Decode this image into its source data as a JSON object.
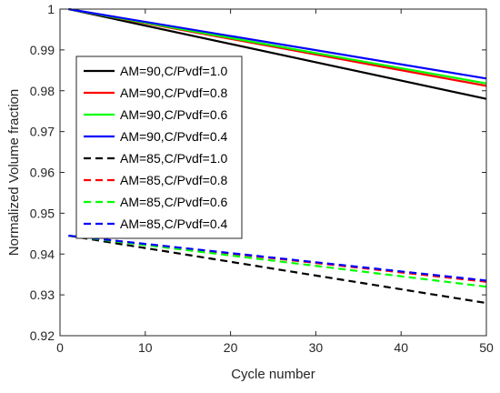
{
  "chart_data": {
    "type": "line",
    "title": "",
    "xlabel": "Cycle number",
    "ylabel": "Normalized Volume fraction",
    "xlim": [
      0,
      50
    ],
    "ylim": [
      0.92,
      1.0
    ],
    "xticks": [
      0,
      10,
      20,
      30,
      40,
      50
    ],
    "xtick_labels": [
      "0",
      "10",
      "20",
      "30",
      "40",
      "50"
    ],
    "yticks": [
      0.92,
      0.93,
      0.94,
      0.95,
      0.96,
      0.97,
      0.98,
      0.99,
      1.0
    ],
    "ytick_labels": [
      "0.92",
      "0.93",
      "0.94",
      "0.95",
      "0.96",
      "0.97",
      "0.98",
      "0.99",
      "1"
    ],
    "grid": false,
    "legend_position": "top-left",
    "series": [
      {
        "name": "AM=90,C/Pvdf=1.0",
        "color": "#000000",
        "style": "solid",
        "x": [
          1,
          50
        ],
        "y": [
          1.0,
          0.978
        ]
      },
      {
        "name": "AM=90,C/Pvdf=0.8",
        "color": "#ff0000",
        "style": "solid",
        "x": [
          1,
          50
        ],
        "y": [
          1.0,
          0.9812
        ]
      },
      {
        "name": "AM=90,C/Pvdf=0.6",
        "color": "#00ff00",
        "style": "solid",
        "x": [
          1,
          50
        ],
        "y": [
          1.0,
          0.9818
        ]
      },
      {
        "name": "AM=90,C/Pvdf=0.4",
        "color": "#0000ff",
        "style": "solid",
        "x": [
          1,
          50
        ],
        "y": [
          1.0,
          0.983
        ]
      },
      {
        "name": "AM=85,C/Pvdf=1.0",
        "color": "#000000",
        "style": "dashed",
        "x": [
          1,
          50
        ],
        "y": [
          0.9445,
          0.928
        ]
      },
      {
        "name": "AM=85,C/Pvdf=0.8",
        "color": "#ff0000",
        "style": "dashed",
        "x": [
          1,
          50
        ],
        "y": [
          0.9445,
          0.9332
        ]
      },
      {
        "name": "AM=85,C/Pvdf=0.6",
        "color": "#00ff00",
        "style": "dashed",
        "x": [
          1,
          50
        ],
        "y": [
          0.9445,
          0.932
        ]
      },
      {
        "name": "AM=85,C/Pvdf=0.4",
        "color": "#0000ff",
        "style": "dashed",
        "x": [
          1,
          50
        ],
        "y": [
          0.9445,
          0.9335
        ]
      }
    ]
  }
}
